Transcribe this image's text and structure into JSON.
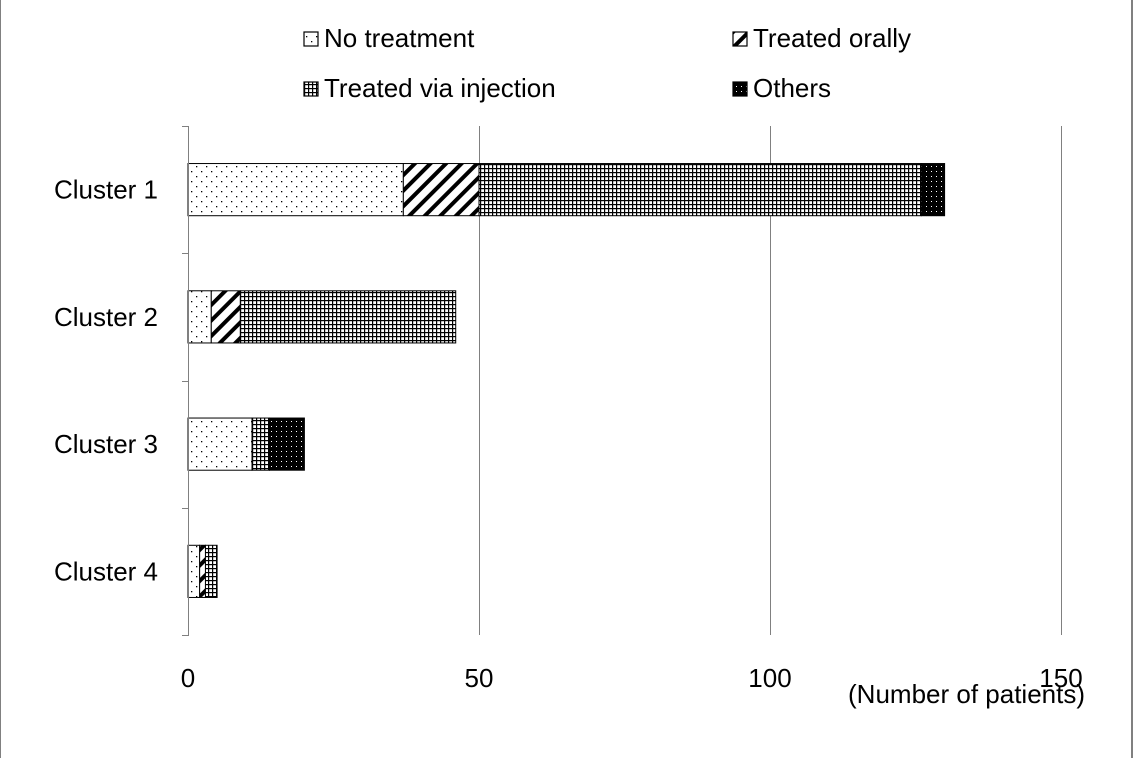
{
  "chart_data": {
    "type": "bar",
    "orientation": "horizontal",
    "stacked": true,
    "categories": [
      "Cluster 1",
      "Cluster 2",
      "Cluster 3",
      "Cluster 4"
    ],
    "series": [
      {
        "name": "No treatment",
        "pattern": "dots",
        "values": [
          37,
          4,
          11,
          2
        ]
      },
      {
        "name": "Treated orally",
        "pattern": "diagonal",
        "values": [
          13,
          5,
          0,
          1
        ]
      },
      {
        "name": "Treated via injection",
        "pattern": "grid",
        "values": [
          76,
          37,
          3,
          2
        ]
      },
      {
        "name": "Others",
        "pattern": "dark",
        "values": [
          4,
          0,
          6,
          0
        ]
      }
    ],
    "xlabel": "(Number  of patients)",
    "ylabel": "",
    "xlim": [
      0,
      150
    ],
    "xticks": [
      0,
      50,
      100,
      150
    ],
    "grid": "vertical major gridlines",
    "legend_position": "top",
    "colors": {
      "ink": "#000000",
      "gridline": "#808080",
      "background": "#ffffff"
    }
  }
}
